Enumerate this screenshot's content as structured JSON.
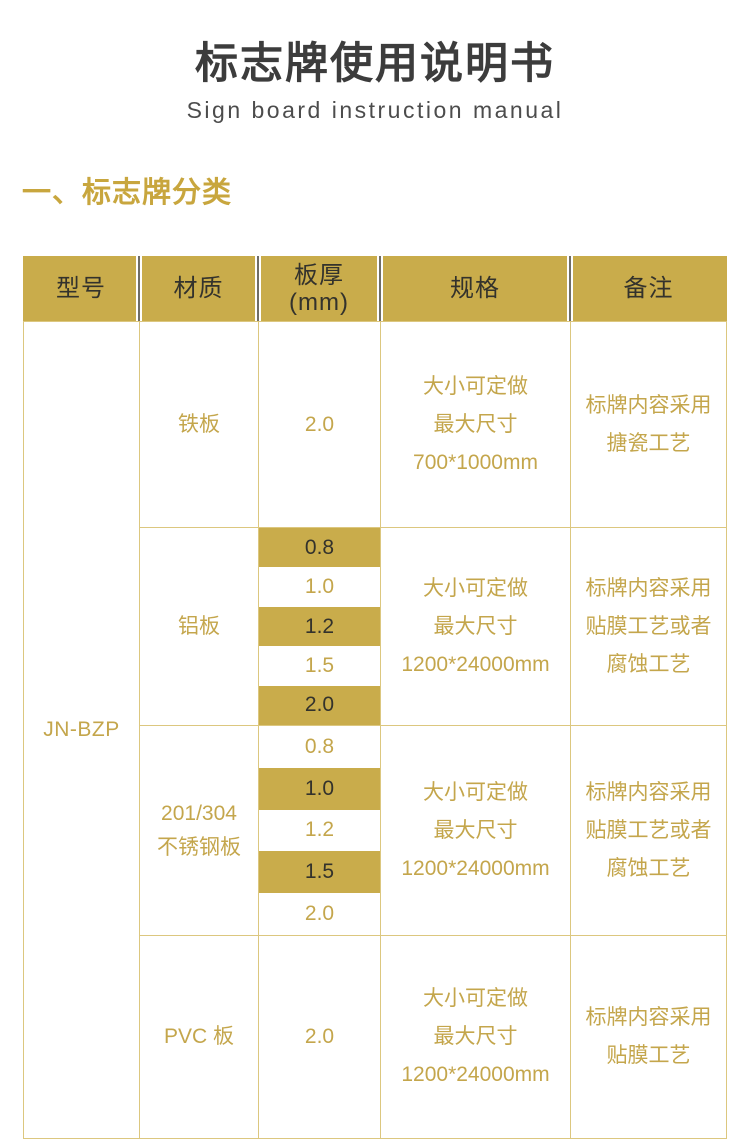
{
  "header": {
    "title": "标志牌使用说明书",
    "subtitle": "Sign board instruction manual"
  },
  "section": {
    "heading": "一、标志牌分类"
  },
  "table": {
    "columns": [
      {
        "key": "model",
        "label_lines": [
          "型号"
        ]
      },
      {
        "key": "material",
        "label_lines": [
          "材质"
        ]
      },
      {
        "key": "thickness",
        "label_lines": [
          "板厚",
          "(mm)"
        ]
      },
      {
        "key": "spec",
        "label_lines": [
          "规格"
        ]
      },
      {
        "key": "note",
        "label_lines": [
          "备注"
        ]
      }
    ],
    "model": "JN-BZP",
    "sections": [
      {
        "material_lines": [
          "铁板"
        ],
        "thicknesses": [
          {
            "value": "2.0",
            "highlight": false
          }
        ],
        "spec_lines": [
          "大小可定做",
          "最大尺寸",
          "700*1000mm"
        ],
        "note_lines": [
          "标牌内容采用",
          "搪瓷工艺"
        ]
      },
      {
        "material_lines": [
          "铝板"
        ],
        "thicknesses": [
          {
            "value": "0.8",
            "highlight": true
          },
          {
            "value": "1.0",
            "highlight": false
          },
          {
            "value": "1.2",
            "highlight": true
          },
          {
            "value": "1.5",
            "highlight": false
          },
          {
            "value": "2.0",
            "highlight": true
          }
        ],
        "spec_lines": [
          "大小可定做",
          "最大尺寸",
          "1200*24000mm"
        ],
        "note_lines": [
          "标牌内容采用",
          "贴膜工艺或者",
          "腐蚀工艺"
        ]
      },
      {
        "material_lines": [
          "201/304",
          "不锈钢板"
        ],
        "thicknesses": [
          {
            "value": "0.8",
            "highlight": false
          },
          {
            "value": "1.0",
            "highlight": true
          },
          {
            "value": "1.2",
            "highlight": false
          },
          {
            "value": "1.5",
            "highlight": true
          },
          {
            "value": "2.0",
            "highlight": false
          }
        ],
        "spec_lines": [
          "大小可定做",
          "最大尺寸",
          "1200*24000mm"
        ],
        "note_lines": [
          "标牌内容采用",
          "贴膜工艺或者",
          "腐蚀工艺"
        ]
      },
      {
        "material_lines": [
          "PVC 板"
        ],
        "thicknesses": [
          {
            "value": "2.0",
            "highlight": false
          }
        ],
        "spec_lines": [
          "大小可定做",
          "最大尺寸",
          "1200*24000mm"
        ],
        "note_lines": [
          "标牌内容采用",
          "贴膜工艺"
        ]
      }
    ]
  },
  "colors": {
    "gold": "#C9AC4B",
    "gold_text": "#C4A64C",
    "border_gold": "#DCC77F",
    "dark_on_gold": "#33322C",
    "title_dark": "#3C3C3C",
    "subtitle_gray": "#4C4C4C",
    "heading_gold": "#C8A63E",
    "header_separator_gray": "#6F6D66"
  }
}
